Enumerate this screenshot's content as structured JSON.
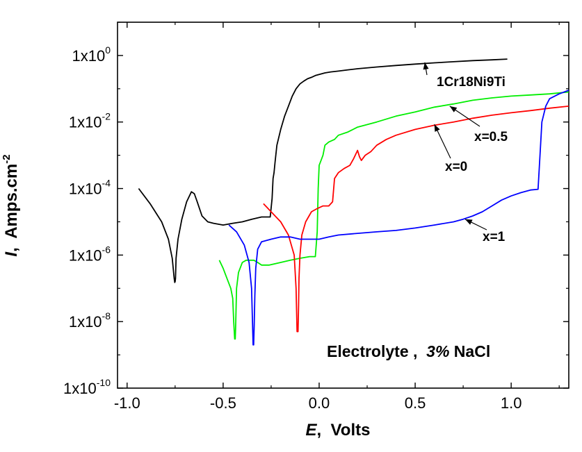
{
  "chart_data": {
    "type": "line",
    "xlabel": {
      "italic": "E",
      "rest": ",  Volts"
    },
    "ylabel": {
      "italic": "I",
      "rest": ",  Amps.cm",
      "sup": "-2"
    },
    "xlim": [
      -1.05,
      1.3
    ],
    "ylim": [
      1e-10,
      10.0
    ],
    "yscale": "log",
    "grid": false,
    "x_ticks": [
      {
        "value": -1.0,
        "label": "-1.0"
      },
      {
        "value": -0.5,
        "label": "-0.5"
      },
      {
        "value": 0.0,
        "label": "0.0"
      },
      {
        "value": 0.5,
        "label": "0.5"
      },
      {
        "value": 1.0,
        "label": "1.0"
      }
    ],
    "y_ticks": [
      {
        "value": 1.0,
        "base": "1x10",
        "exp": "0"
      },
      {
        "value": 0.01,
        "base": "1x10",
        "exp": "-2"
      },
      {
        "value": 0.0001,
        "base": "1x10",
        "exp": "-4"
      },
      {
        "value": 1e-06,
        "base": "1x10",
        "exp": "-6"
      },
      {
        "value": 1e-08,
        "base": "1x10",
        "exp": "-8"
      },
      {
        "value": 1e-10,
        "base": "1x10",
        "exp": "-10"
      }
    ],
    "inset_text": {
      "main": "Electrolyte ,  ",
      "italic": "3%",
      "tail": " NaCl"
    },
    "series": [
      {
        "name": "1Cr18Ni9Ti",
        "color": "#000000",
        "x": [
          -0.94,
          -0.88,
          -0.82,
          -0.785,
          -0.765,
          -0.755,
          -0.752,
          -0.75,
          -0.748,
          -0.745,
          -0.735,
          -0.715,
          -0.69,
          -0.665,
          -0.65,
          -0.635,
          -0.61,
          -0.58,
          -0.55,
          -0.5,
          -0.45,
          -0.4,
          -0.35,
          -0.3,
          -0.255,
          -0.245,
          -0.24,
          -0.235,
          -0.23,
          -0.22,
          -0.2,
          -0.18,
          -0.16,
          -0.14,
          -0.12,
          -0.1,
          -0.08,
          -0.06,
          -0.04,
          -0.02,
          0.0,
          0.03,
          0.06,
          0.1,
          0.15,
          0.2,
          0.3,
          0.4,
          0.5,
          0.6,
          0.7,
          0.8,
          0.9,
          0.98
        ],
        "y": [
          0.0001,
          3.5e-05,
          1e-05,
          3e-06,
          8e-07,
          2e-07,
          1.5e-07,
          1.6e-07,
          2e-07,
          8e-07,
          3e-06,
          1.2e-05,
          4e-05,
          8e-05,
          7e-05,
          4e-05,
          1.5e-05,
          1e-05,
          9e-06,
          8e-06,
          9e-06,
          1e-05,
          1.2e-05,
          1.4e-05,
          1.4e-05,
          5e-05,
          0.0002,
          0.0003,
          0.0006,
          0.002,
          0.006,
          0.015,
          0.03,
          0.06,
          0.1,
          0.14,
          0.17,
          0.2,
          0.22,
          0.25,
          0.27,
          0.3,
          0.32,
          0.34,
          0.37,
          0.4,
          0.45,
          0.5,
          0.55,
          0.6,
          0.65,
          0.7,
          0.74,
          0.78
        ]
      },
      {
        "name": "x=0.5",
        "color": "#00ee00",
        "x": [
          -0.52,
          -0.5,
          -0.48,
          -0.46,
          -0.45,
          -0.445,
          -0.44,
          -0.437,
          -0.435,
          -0.433,
          -0.43,
          -0.42,
          -0.4,
          -0.38,
          -0.36,
          -0.34,
          -0.32,
          -0.3,
          -0.26,
          -0.2,
          -0.15,
          -0.1,
          -0.05,
          -0.02,
          -0.01,
          -0.005,
          0.0,
          0.01,
          0.02,
          0.03,
          0.05,
          0.08,
          0.1,
          0.15,
          0.2,
          0.3,
          0.4,
          0.5,
          0.6,
          0.7,
          0.8,
          0.9,
          1.0,
          1.1,
          1.2,
          1.25,
          1.3
        ],
        "y": [
          7e-07,
          4e-07,
          2e-07,
          1e-07,
          5e-08,
          1e-08,
          3e-09,
          3e-09,
          6e-09,
          2e-08,
          1e-07,
          3e-07,
          6e-07,
          7e-07,
          7e-07,
          7e-07,
          6e-07,
          5e-07,
          5e-07,
          6e-07,
          7e-07,
          8e-07,
          9e-07,
          9e-07,
          5e-06,
          0.0001,
          0.0005,
          0.0007,
          0.001,
          0.002,
          0.0025,
          0.003,
          0.004,
          0.005,
          0.007,
          0.01,
          0.015,
          0.02,
          0.028,
          0.035,
          0.045,
          0.053,
          0.06,
          0.065,
          0.07,
          0.075,
          0.08
        ]
      },
      {
        "name": "x=0",
        "color": "#ff0000",
        "x": [
          -0.29,
          -0.25,
          -0.2,
          -0.16,
          -0.13,
          -0.12,
          -0.115,
          -0.11,
          -0.107,
          -0.105,
          -0.1,
          -0.09,
          -0.07,
          -0.04,
          -0.01,
          0.02,
          0.05,
          0.07,
          0.08,
          0.1,
          0.13,
          0.16,
          0.18,
          0.2,
          0.21,
          0.22,
          0.24,
          0.27,
          0.3,
          0.35,
          0.4,
          0.5,
          0.6,
          0.7,
          0.8,
          0.9,
          1.0,
          1.1,
          1.2,
          1.3
        ],
        "y": [
          3.5e-05,
          2e-05,
          1e-05,
          4e-06,
          1e-06,
          1e-07,
          5e-09,
          5e-09,
          3e-08,
          2e-07,
          1e-06,
          4e-06,
          1e-05,
          2e-05,
          2.5e-05,
          3e-05,
          3e-05,
          4e-05,
          0.0002,
          0.0003,
          0.0004,
          0.0005,
          0.0008,
          0.0014,
          0.0009,
          0.0007,
          0.001,
          0.0013,
          0.002,
          0.003,
          0.004,
          0.006,
          0.008,
          0.01,
          0.013,
          0.016,
          0.019,
          0.022,
          0.026,
          0.03
        ]
      },
      {
        "name": "x=1",
        "color": "#0000ff",
        "x": [
          -0.47,
          -0.43,
          -0.39,
          -0.365,
          -0.352,
          -0.347,
          -0.344,
          -0.341,
          -0.338,
          -0.335,
          -0.33,
          -0.32,
          -0.3,
          -0.25,
          -0.2,
          -0.15,
          -0.1,
          -0.05,
          0.0,
          0.05,
          0.1,
          0.2,
          0.3,
          0.4,
          0.5,
          0.6,
          0.7,
          0.75,
          0.8,
          0.85,
          0.9,
          0.95,
          1.0,
          1.05,
          1.1,
          1.14,
          1.15,
          1.16,
          1.18,
          1.2,
          1.25,
          1.3
        ],
        "y": [
          8e-06,
          5e-06,
          2e-06,
          6e-07,
          1e-07,
          1e-08,
          2e-09,
          2e-09,
          8e-09,
          6e-08,
          4e-07,
          1.5e-06,
          2.5e-06,
          3e-06,
          3.5e-06,
          3.5e-06,
          3e-06,
          3e-06,
          3e-06,
          3.5e-06,
          4e-06,
          4.5e-06,
          5e-06,
          5.5e-06,
          6.5e-06,
          8e-06,
          1e-05,
          1.2e-05,
          1.5e-05,
          2e-05,
          3e-05,
          4.5e-05,
          6e-05,
          7.5e-05,
          9e-05,
          9.5e-05,
          0.001,
          0.01,
          0.03,
          0.05,
          0.07,
          0.09
        ]
      }
    ],
    "annotations": [
      {
        "label": "1Cr18Ni9Ti",
        "series": "1Cr18Ni9Ti",
        "point_x": 0.55,
        "point_y": 0.62
      },
      {
        "label": "x=0.5",
        "series": "x=0.5",
        "point_x": 0.68,
        "point_y": 0.03
      },
      {
        "label": "x=0",
        "series": "x=0",
        "point_x": 0.6,
        "point_y": 0.0085
      },
      {
        "label": "x=1",
        "series": "x=1",
        "point_x": 0.76,
        "point_y": 1.2e-05
      }
    ]
  }
}
